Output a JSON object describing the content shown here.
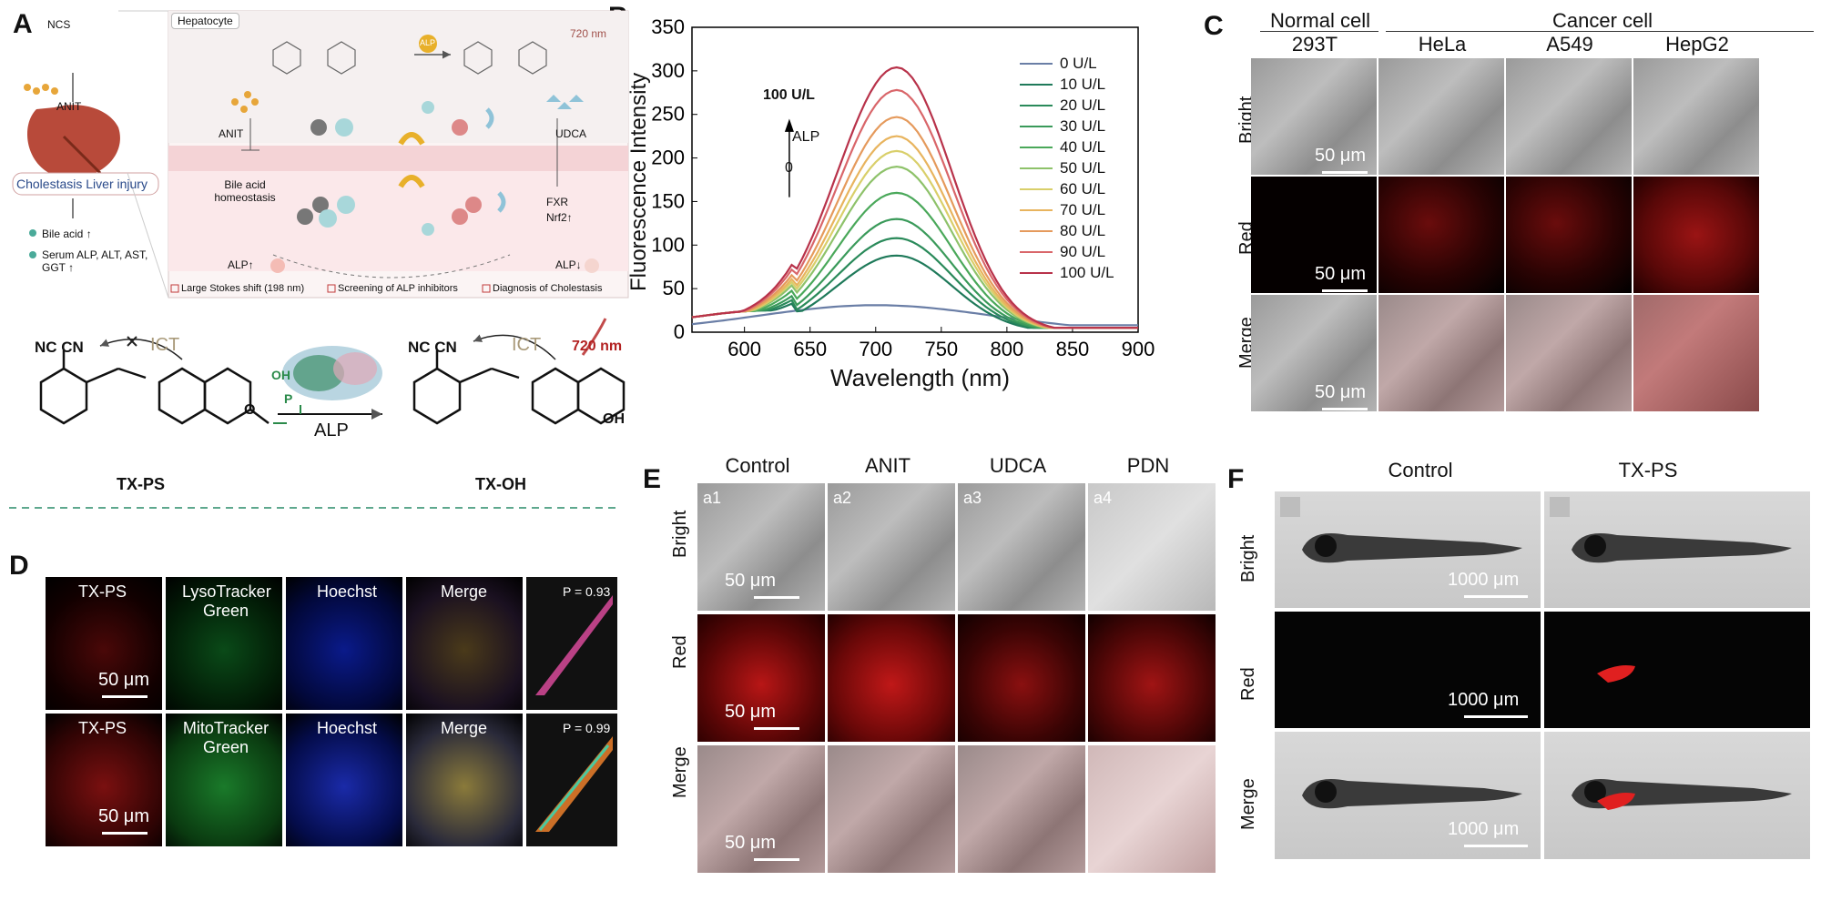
{
  "panel_letters": {
    "a": "A",
    "b": "B",
    "c": "C",
    "d": "D",
    "e": "E",
    "f": "F"
  },
  "panelA": {
    "molecule_left": "ANIT",
    "ncs": "NCS",
    "hepatocyte": "Hepatocyte",
    "wavelength_720": "720 nm",
    "alp_badge": "ALP",
    "anit": "ANIT",
    "udca": "UDCA",
    "bile_acid": "Bile acid homeostasis",
    "fxr": "FXR",
    "nrf2": "Nrf2↑",
    "alp_up": "ALP↑",
    "alp_down": "ALP↓",
    "cholestasis": "Cholestasis Liver injury",
    "bullet1": "Bile acid ↑",
    "bullet2": "Serum ALP, ALT, AST, GGT ↑",
    "feature1": "Large Stokes shift (198 nm)",
    "feature2": "Screening of ALP inhibitors",
    "feature3": "Diagnosis of Cholestasis",
    "ict_left": "ICT",
    "ict_right": "ICT",
    "nc_cn_left": "NC   CN",
    "nc_cn_right": "NC   CN",
    "oh": "OH",
    "p_label": "P",
    "o_label": "O",
    "o2": "O",
    "alp_arrow": "ALP",
    "wave_720_b": "720 nm",
    "txps": "TX-PS",
    "txoh": "TX-OH"
  },
  "panelB": {
    "ylabel": "Fluorescence Intensity",
    "xlabel": "Wavelength (nm)",
    "arrow_top": "100 U/L",
    "arrow_alp": "ALP",
    "arrow_bottom": "0"
  },
  "chart_data": {
    "type": "line",
    "xlabel": "Wavelength (nm)",
    "ylabel": "Fluorescence Intensity",
    "xlim": [
      560,
      900
    ],
    "ylim": [
      0,
      350
    ],
    "xticks": [
      600,
      650,
      700,
      750,
      800,
      850,
      900
    ],
    "yticks": [
      0,
      50,
      100,
      150,
      200,
      250,
      300,
      350
    ],
    "peak_x": 716,
    "legend_position": "top-right",
    "series": [
      {
        "name": "0 U/L",
        "color": "#6a7ea6",
        "peak": 31
      },
      {
        "name": "10 U/L",
        "color": "#1f7a5a",
        "peak": 88
      },
      {
        "name": "20 U/L",
        "color": "#2a8a5a",
        "peak": 108
      },
      {
        "name": "30 U/L",
        "color": "#3a9a5a",
        "peak": 130
      },
      {
        "name": "40 U/L",
        "color": "#4aa85a",
        "peak": 160
      },
      {
        "name": "50 U/L",
        "color": "#8ec26a",
        "peak": 190
      },
      {
        "name": "60 U/L",
        "color": "#d9cf6a",
        "peak": 208
      },
      {
        "name": "70 U/L",
        "color": "#e8b45e",
        "peak": 225
      },
      {
        "name": "80 U/L",
        "color": "#e59a5c",
        "peak": 247
      },
      {
        "name": "90 U/L",
        "color": "#d9666a",
        "peak": 278
      },
      {
        "name": "100 U/L",
        "color": "#b8324a",
        "peak": 304
      }
    ]
  },
  "panelC": {
    "normal": "Normal cell",
    "cancer": "Cancer cell",
    "cols": [
      "293T",
      "HeLa",
      "A549",
      "HepG2"
    ],
    "rows": [
      "Bright",
      "Red",
      "Merge"
    ],
    "scale": "50 μm"
  },
  "panelD": {
    "row1": [
      "TX-PS",
      "LysoTracker Green",
      "Hoechst",
      "Merge"
    ],
    "row2": [
      "TX-PS",
      "MitoTracker Green",
      "Hoechst",
      "Merge"
    ],
    "p1": "P = 0.93",
    "p2": "P = 0.99",
    "scale": "50 μm"
  },
  "panelE": {
    "cols": [
      "Control",
      "ANIT",
      "UDCA",
      "PDN"
    ],
    "tags": [
      "a1",
      "a2",
      "a3",
      "a4"
    ],
    "rows": [
      "Bright",
      "Red",
      "Merge"
    ],
    "scale": "50 μm"
  },
  "panelF": {
    "cols": [
      "Control",
      "TX-PS"
    ],
    "rows": [
      "Bright",
      "Red",
      "Merge"
    ],
    "scale": "1000 μm"
  }
}
